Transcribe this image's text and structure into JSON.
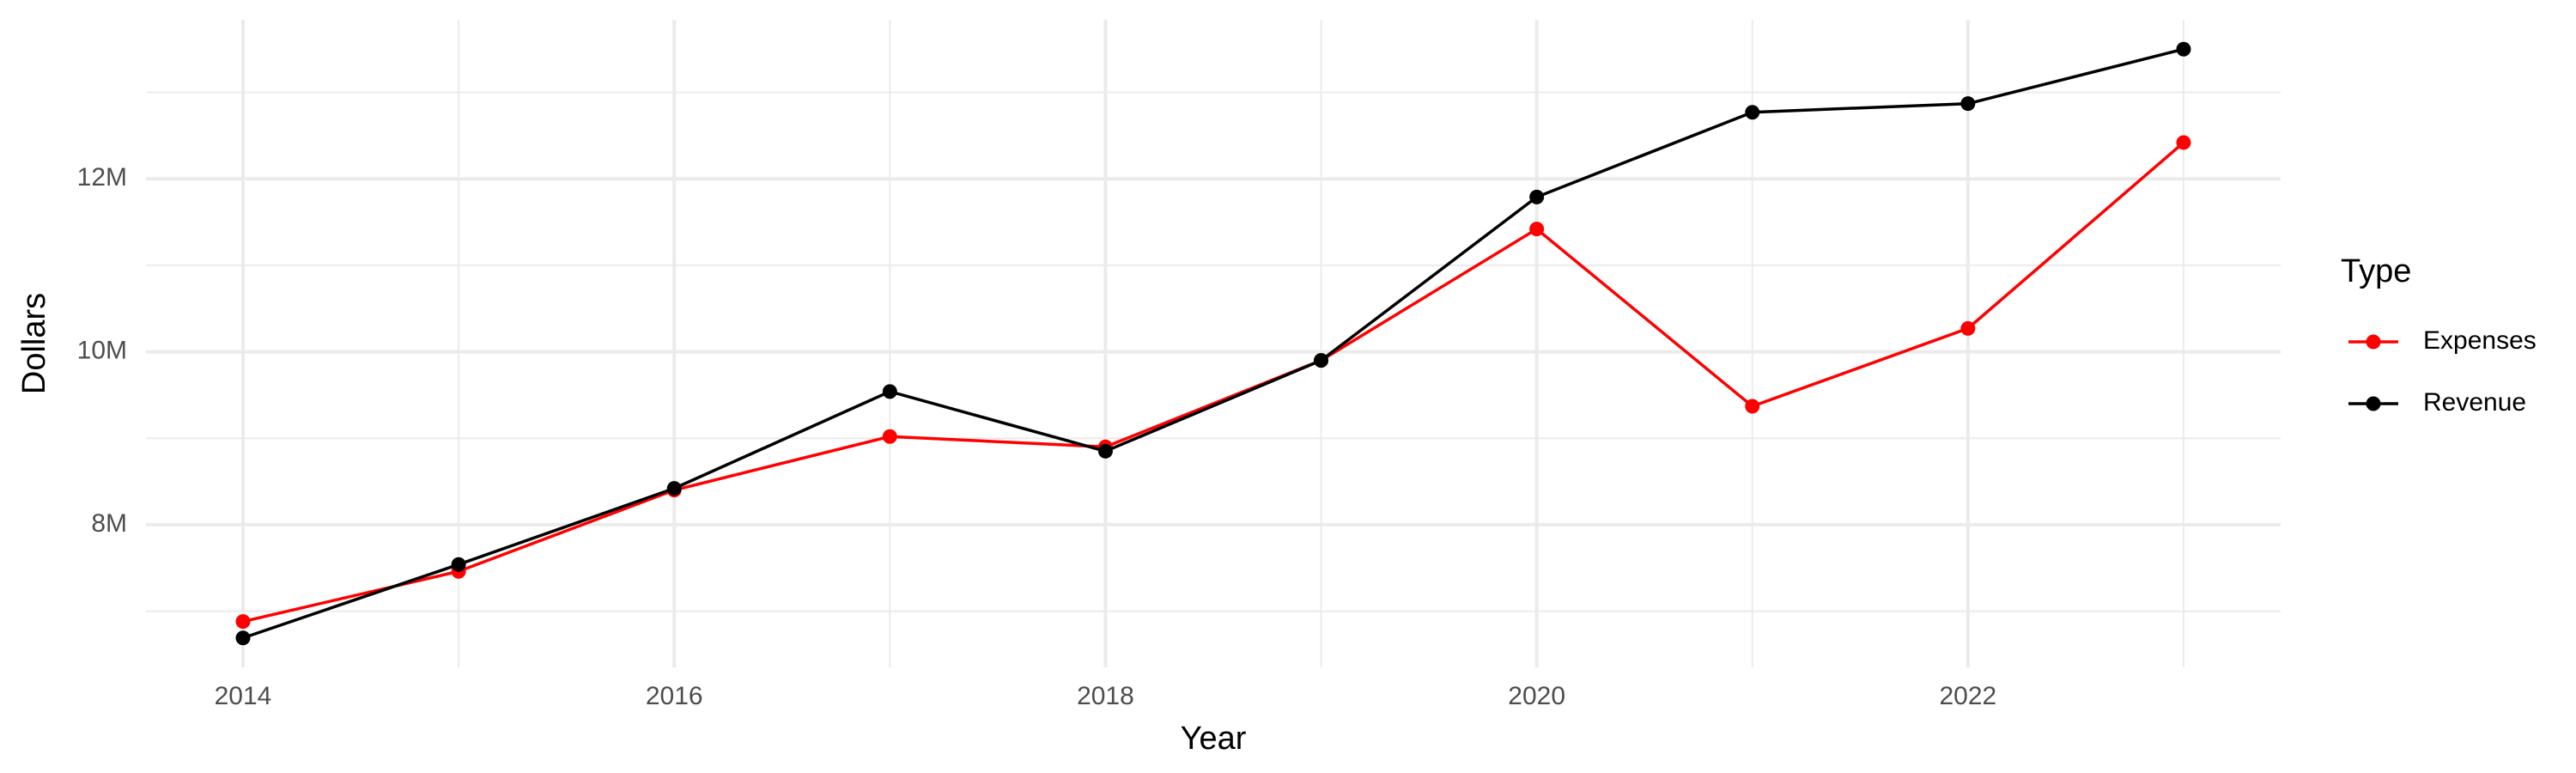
{
  "chart_data": {
    "type": "line",
    "x_label": "Year",
    "y_label": "Dollars",
    "legend_title": "Type",
    "legend_position": "right",
    "grid": true,
    "x": [
      2014,
      2015,
      2016,
      2017,
      2018,
      2019,
      2020,
      2021,
      2022,
      2023
    ],
    "series": [
      {
        "name": "Expenses",
        "color": "#ff0000",
        "values": [
          6880000,
          7460000,
          8400000,
          9020000,
          8900000,
          9900000,
          11420000,
          9370000,
          10270000,
          12420000
        ]
      },
      {
        "name": "Revenue",
        "color": "#000000",
        "values": [
          6690000,
          7540000,
          8420000,
          9540000,
          8850000,
          9900000,
          11790000,
          12770000,
          12870000,
          13500000
        ]
      }
    ],
    "xlim": [
      2013.55,
      2023.45
    ],
    "xticks": [
      2014,
      2016,
      2018,
      2020,
      2022
    ],
    "xticks_minor": [
      2015,
      2017,
      2019,
      2021,
      2023
    ],
    "ylim": [
      6350000,
      13840000
    ],
    "yticks": [
      {
        "value": 8000000,
        "label": "8M"
      },
      {
        "value": 10000000,
        "label": "10M"
      },
      {
        "value": 12000000,
        "label": "12M"
      }
    ],
    "yticks_minor": [
      7000000,
      9000000,
      11000000,
      13000000
    ]
  }
}
